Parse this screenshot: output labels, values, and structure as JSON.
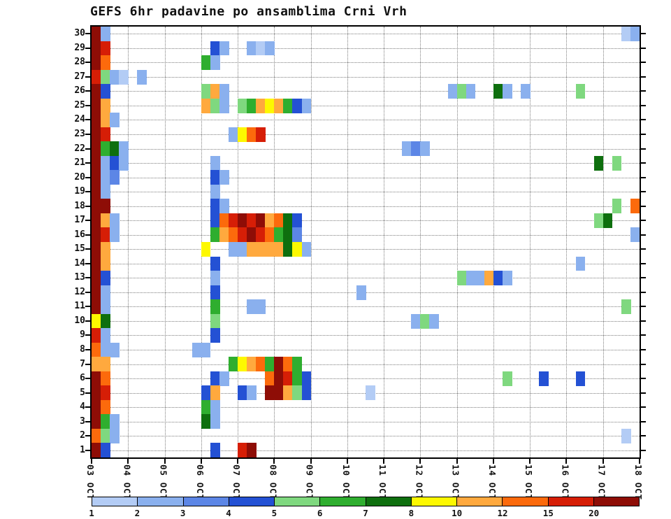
{
  "title": "GEFS 6hr padavine po ansamblima Crni Vrh",
  "chart_data": {
    "type": "heatmap",
    "title": "GEFS 6hr padavine po ansamblima Crni Vrh",
    "x_axis": {
      "tick_labels": [
        "03 OCT",
        "04 OCT",
        "05 OCT",
        "06 OCT",
        "07 OCT",
        "08 OCT",
        "09 OCT",
        "10 OCT",
        "11 OCT",
        "12 OCT",
        "13 OCT",
        "14 OCT",
        "15 OCT",
        "16 OCT",
        "17 OCT",
        "18 OCT"
      ],
      "steps_per_day": 4,
      "total_steps": 60
    },
    "y_axis": {
      "tick_labels": [
        "1",
        "2",
        "3",
        "4",
        "5",
        "6",
        "7",
        "8",
        "9",
        "10",
        "11",
        "12",
        "13",
        "14",
        "15",
        "16",
        "17",
        "18",
        "19",
        "20",
        "21",
        "22",
        "23",
        "24",
        "25",
        "26",
        "27",
        "28",
        "29",
        "30"
      ],
      "members": 30
    },
    "color_scale": {
      "tick_labels": [
        "1",
        "2",
        "3",
        "4",
        "5",
        "6",
        "7",
        "8",
        "10",
        "12",
        "15",
        "20"
      ],
      "boundaries": [
        1,
        2,
        3,
        4,
        5,
        6,
        7,
        8,
        10,
        12,
        15,
        20
      ],
      "colors": [
        "#b3ccf5",
        "#8ab0ee",
        "#5c86e6",
        "#2451d4",
        "#7fd87f",
        "#2fae2f",
        "#0e6f0e",
        "#fdf800",
        "#ffa93e",
        "#fc6a0c",
        "#d61e06",
        "#8e0d06"
      ]
    },
    "cells_format": "[member, step_index_from_03OCT, value]",
    "cells": [
      [
        30,
        0,
        20
      ],
      [
        30,
        1,
        2
      ],
      [
        30,
        58,
        1
      ],
      [
        30,
        59,
        2
      ],
      [
        29,
        0,
        20
      ],
      [
        29,
        1,
        15
      ],
      [
        29,
        13,
        4
      ],
      [
        29,
        14,
        2
      ],
      [
        29,
        17,
        2
      ],
      [
        29,
        18,
        1
      ],
      [
        29,
        19,
        2
      ],
      [
        28,
        0,
        20
      ],
      [
        28,
        1,
        12
      ],
      [
        28,
        12,
        6
      ],
      [
        28,
        13,
        2
      ],
      [
        27,
        0,
        15
      ],
      [
        27,
        1,
        5
      ],
      [
        27,
        2,
        2
      ],
      [
        27,
        3,
        1
      ],
      [
        27,
        5,
        2
      ],
      [
        26,
        0,
        20
      ],
      [
        26,
        1,
        4
      ],
      [
        26,
        12,
        5
      ],
      [
        26,
        13,
        10
      ],
      [
        26,
        14,
        2
      ],
      [
        26,
        39,
        2
      ],
      [
        26,
        40,
        5
      ],
      [
        26,
        41,
        2
      ],
      [
        26,
        44,
        7
      ],
      [
        26,
        45,
        2
      ],
      [
        26,
        47,
        2
      ],
      [
        26,
        53,
        5
      ],
      [
        25,
        0,
        20
      ],
      [
        25,
        1,
        10
      ],
      [
        25,
        12,
        10
      ],
      [
        25,
        13,
        5
      ],
      [
        25,
        14,
        2
      ],
      [
        25,
        16,
        5
      ],
      [
        25,
        17,
        6
      ],
      [
        25,
        18,
        10
      ],
      [
        25,
        19,
        8
      ],
      [
        25,
        20,
        10
      ],
      [
        25,
        21,
        6
      ],
      [
        25,
        22,
        4
      ],
      [
        25,
        23,
        2
      ],
      [
        24,
        0,
        20
      ],
      [
        24,
        1,
        10
      ],
      [
        24,
        2,
        2
      ],
      [
        23,
        0,
        20
      ],
      [
        23,
        1,
        15
      ],
      [
        23,
        15,
        2
      ],
      [
        23,
        16,
        8
      ],
      [
        23,
        17,
        12
      ],
      [
        23,
        18,
        15
      ],
      [
        22,
        0,
        20
      ],
      [
        22,
        1,
        6
      ],
      [
        22,
        2,
        7
      ],
      [
        22,
        3,
        2
      ],
      [
        22,
        34,
        2
      ],
      [
        22,
        35,
        3
      ],
      [
        22,
        36,
        2
      ],
      [
        21,
        0,
        20
      ],
      [
        21,
        1,
        2
      ],
      [
        21,
        2,
        4
      ],
      [
        21,
        3,
        2
      ],
      [
        21,
        13,
        2
      ],
      [
        21,
        55,
        7
      ],
      [
        21,
        57,
        5
      ],
      [
        20,
        0,
        20
      ],
      [
        20,
        1,
        2
      ],
      [
        20,
        2,
        3
      ],
      [
        20,
        13,
        4
      ],
      [
        20,
        14,
        2
      ],
      [
        19,
        0,
        20
      ],
      [
        19,
        1,
        2
      ],
      [
        19,
        13,
        2
      ],
      [
        18,
        0,
        20
      ],
      [
        18,
        1,
        20
      ],
      [
        18,
        13,
        4
      ],
      [
        18,
        14,
        2
      ],
      [
        18,
        57,
        5
      ],
      [
        18,
        59,
        12
      ],
      [
        17,
        0,
        20
      ],
      [
        17,
        1,
        10
      ],
      [
        17,
        2,
        2
      ],
      [
        17,
        13,
        4
      ],
      [
        17,
        14,
        12
      ],
      [
        17,
        15,
        15
      ],
      [
        17,
        16,
        20
      ],
      [
        17,
        17,
        15
      ],
      [
        17,
        18,
        20
      ],
      [
        17,
        19,
        10
      ],
      [
        17,
        20,
        12
      ],
      [
        17,
        21,
        7
      ],
      [
        17,
        22,
        4
      ],
      [
        17,
        55,
        5
      ],
      [
        17,
        56,
        7
      ],
      [
        16,
        0,
        20
      ],
      [
        16,
        1,
        15
      ],
      [
        16,
        2,
        2
      ],
      [
        16,
        13,
        6
      ],
      [
        16,
        14,
        10
      ],
      [
        16,
        15,
        12
      ],
      [
        16,
        16,
        15
      ],
      [
        16,
        17,
        20
      ],
      [
        16,
        18,
        15
      ],
      [
        16,
        19,
        12
      ],
      [
        16,
        20,
        6
      ],
      [
        16,
        21,
        7
      ],
      [
        16,
        22,
        3
      ],
      [
        16,
        59,
        2
      ],
      [
        15,
        0,
        20
      ],
      [
        15,
        1,
        10
      ],
      [
        15,
        12,
        8
      ],
      [
        15,
        15,
        2
      ],
      [
        15,
        16,
        2
      ],
      [
        15,
        17,
        10
      ],
      [
        15,
        18,
        10
      ],
      [
        15,
        19,
        10
      ],
      [
        15,
        20,
        10
      ],
      [
        15,
        21,
        7
      ],
      [
        15,
        22,
        8
      ],
      [
        15,
        23,
        2
      ],
      [
        14,
        0,
        20
      ],
      [
        14,
        1,
        10
      ],
      [
        14,
        13,
        4
      ],
      [
        14,
        53,
        2
      ],
      [
        13,
        0,
        20
      ],
      [
        13,
        1,
        4
      ],
      [
        13,
        13,
        2
      ],
      [
        13,
        40,
        5
      ],
      [
        13,
        41,
        2
      ],
      [
        13,
        42,
        2
      ],
      [
        13,
        43,
        10
      ],
      [
        13,
        44,
        4
      ],
      [
        13,
        45,
        2
      ],
      [
        12,
        0,
        20
      ],
      [
        12,
        1,
        2
      ],
      [
        12,
        13,
        4
      ],
      [
        12,
        29,
        2
      ],
      [
        11,
        0,
        20
      ],
      [
        11,
        1,
        2
      ],
      [
        11,
        13,
        6
      ],
      [
        11,
        17,
        2
      ],
      [
        11,
        18,
        2
      ],
      [
        11,
        58,
        5
      ],
      [
        10,
        0,
        8
      ],
      [
        10,
        1,
        7
      ],
      [
        10,
        13,
        5
      ],
      [
        10,
        35,
        2
      ],
      [
        10,
        36,
        5
      ],
      [
        10,
        37,
        2
      ],
      [
        9,
        0,
        15
      ],
      [
        9,
        1,
        2
      ],
      [
        9,
        13,
        4
      ],
      [
        8,
        0,
        12
      ],
      [
        8,
        1,
        2
      ],
      [
        8,
        2,
        2
      ],
      [
        8,
        11,
        2
      ],
      [
        8,
        12,
        2
      ],
      [
        7,
        0,
        10
      ],
      [
        7,
        1,
        10
      ],
      [
        7,
        15,
        6
      ],
      [
        7,
        16,
        8
      ],
      [
        7,
        17,
        10
      ],
      [
        7,
        18,
        12
      ],
      [
        7,
        19,
        6
      ],
      [
        7,
        20,
        20
      ],
      [
        7,
        21,
        12
      ],
      [
        7,
        22,
        6
      ],
      [
        6,
        0,
        20
      ],
      [
        6,
        1,
        12
      ],
      [
        6,
        13,
        4
      ],
      [
        6,
        14,
        2
      ],
      [
        6,
        19,
        12
      ],
      [
        6,
        20,
        20
      ],
      [
        6,
        21,
        15
      ],
      [
        6,
        22,
        6
      ],
      [
        6,
        23,
        4
      ],
      [
        6,
        45,
        5
      ],
      [
        6,
        49,
        4
      ],
      [
        6,
        53,
        4
      ],
      [
        5,
        0,
        20
      ],
      [
        5,
        1,
        15
      ],
      [
        5,
        12,
        4
      ],
      [
        5,
        13,
        10
      ],
      [
        5,
        16,
        4
      ],
      [
        5,
        17,
        2
      ],
      [
        5,
        19,
        20
      ],
      [
        5,
        20,
        20
      ],
      [
        5,
        21,
        10
      ],
      [
        5,
        22,
        5
      ],
      [
        5,
        23,
        4
      ],
      [
        5,
        30,
        1
      ],
      [
        4,
        0,
        20
      ],
      [
        4,
        1,
        12
      ],
      [
        4,
        12,
        6
      ],
      [
        4,
        13,
        2
      ],
      [
        3,
        0,
        20
      ],
      [
        3,
        1,
        6
      ],
      [
        3,
        2,
        2
      ],
      [
        3,
        12,
        7
      ],
      [
        3,
        13,
        2
      ],
      [
        2,
        0,
        12
      ],
      [
        2,
        1,
        5
      ],
      [
        2,
        2,
        2
      ],
      [
        2,
        58,
        1
      ],
      [
        1,
        0,
        20
      ],
      [
        1,
        1,
        4
      ],
      [
        1,
        13,
        4
      ],
      [
        1,
        16,
        15
      ],
      [
        1,
        17,
        20
      ]
    ]
  }
}
